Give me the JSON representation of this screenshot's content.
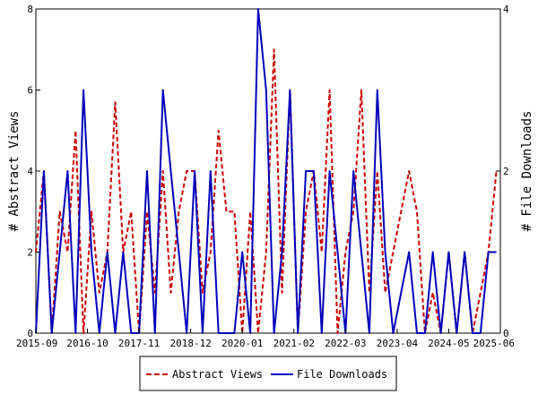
{
  "chart_data": {
    "type": "line",
    "x_ticks": [
      "2015-09",
      "2016-10",
      "2017-11",
      "2018-12",
      "2020-01",
      "2021-02",
      "2022-03",
      "2023-04",
      "2024-05",
      "2025-06"
    ],
    "ylabel_left": "# Abstract Views",
    "ylabel_right": "# File Downloads",
    "ylim_left": [
      0,
      8
    ],
    "ylim_right": [
      0,
      4
    ],
    "yticks_left": [
      0,
      2,
      4,
      6,
      8
    ],
    "yticks_right": [
      0,
      2,
      4
    ],
    "grid": false,
    "legend_position": "bottom-center",
    "x": [
      "2015-09",
      "2015-11",
      "2016-01",
      "2016-03",
      "2016-05",
      "2016-07",
      "2016-09",
      "2016-11",
      "2017-01",
      "2017-03",
      "2017-05",
      "2017-07",
      "2017-09",
      "2017-11",
      "2018-01",
      "2018-03",
      "2018-05",
      "2018-07",
      "2018-09",
      "2018-11",
      "2019-01",
      "2019-03",
      "2019-05",
      "2019-07",
      "2019-09",
      "2019-11",
      "2020-01",
      "2020-03",
      "2020-05",
      "2020-07",
      "2020-09",
      "2020-11",
      "2021-01",
      "2021-03",
      "2021-05",
      "2021-07",
      "2021-09",
      "2021-11",
      "2022-01",
      "2022-03",
      "2022-05",
      "2022-07",
      "2022-09",
      "2022-11",
      "2023-01",
      "2023-03",
      "2023-05",
      "2023-07",
      "2023-09",
      "2023-11",
      "2024-01",
      "2024-03",
      "2024-05",
      "2024-07",
      "2024-09",
      "2024-11",
      "2025-01",
      "2025-03",
      "2025-05"
    ],
    "series": [
      {
        "name": "Abstract Views",
        "axis": "left",
        "color": "#cc0000",
        "dash": "dashed",
        "values": [
          2,
          4,
          0,
          3,
          2,
          5,
          0,
          3,
          1,
          2,
          5.7,
          2,
          3,
          0,
          3,
          1,
          4,
          1,
          3,
          4,
          4,
          1,
          2,
          5,
          3,
          3,
          0,
          3,
          0,
          2,
          7,
          1,
          6,
          0,
          3,
          4,
          2,
          6,
          0,
          2,
          3,
          6,
          1,
          4,
          1,
          2,
          3,
          4,
          3,
          0,
          1,
          0,
          2,
          0,
          2,
          0,
          1,
          2,
          4
        ]
      },
      {
        "name": "File Downloads",
        "axis": "right",
        "color": "#0000bb",
        "dash": "solid",
        "values": [
          0,
          2,
          0,
          1,
          2,
          0,
          3,
          1,
          0,
          1,
          0,
          1,
          0,
          0,
          2,
          0,
          3,
          2,
          1,
          0,
          2,
          0,
          2,
          0,
          0,
          0,
          1,
          0,
          4,
          3,
          0,
          1,
          3,
          0,
          2,
          2,
          0,
          2,
          1,
          0,
          2,
          1,
          0,
          3,
          1,
          0,
          0.5,
          1,
          0,
          0,
          1,
          0,
          1,
          0,
          1,
          0,
          0,
          1,
          1
        ]
      }
    ]
  }
}
